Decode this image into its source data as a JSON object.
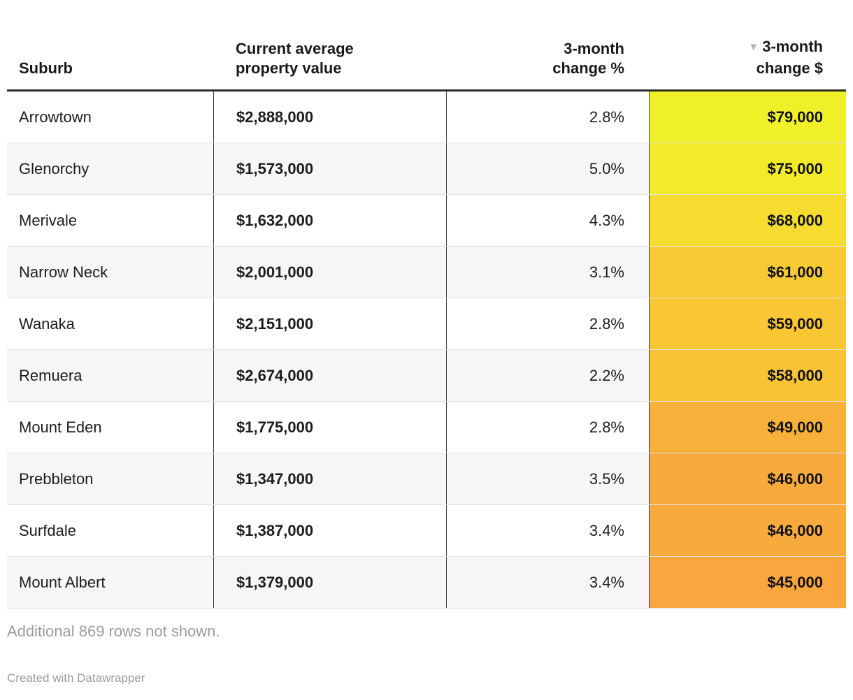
{
  "header": {
    "col1": "Suburb",
    "col2_line1": "Current average",
    "col2_line2": "property value",
    "col3_line1": "3-month",
    "col3_line2": "change %",
    "col4_line1": "3-month",
    "col4_line2": "change $",
    "sort_icon": "▼"
  },
  "table": {
    "rows": [
      {
        "suburb": "Arrowtown",
        "value": "$2,888,000",
        "pct": "2.8%",
        "dollar": "$79,000",
        "color": "#F0F028"
      },
      {
        "suburb": "Glenorchy",
        "value": "$1,573,000",
        "pct": "5.0%",
        "dollar": "$75,000",
        "color": "#F3EA29"
      },
      {
        "suburb": "Merivale",
        "value": "$1,632,000",
        "pct": "4.3%",
        "dollar": "$68,000",
        "color": "#F6DC2F"
      },
      {
        "suburb": "Narrow Neck",
        "value": "$2,001,000",
        "pct": "3.1%",
        "dollar": "$61,000",
        "color": "#F8CA33"
      },
      {
        "suburb": "Wanaka",
        "value": "$2,151,000",
        "pct": "2.8%",
        "dollar": "$59,000",
        "color": "#F8C733"
      },
      {
        "suburb": "Remuera",
        "value": "$2,674,000",
        "pct": "2.2%",
        "dollar": "$58,000",
        "color": "#F8C434"
      },
      {
        "suburb": "Mount Eden",
        "value": "$1,775,000",
        "pct": "2.8%",
        "dollar": "$49,000",
        "color": "#F7B13A"
      },
      {
        "suburb": "Prebbleton",
        "value": "$1,347,000",
        "pct": "3.5%",
        "dollar": "$46,000",
        "color": "#F8AB3C"
      },
      {
        "suburb": "Surfdale",
        "value": "$1,387,000",
        "pct": "3.4%",
        "dollar": "$46,000",
        "color": "#F8AB3C"
      },
      {
        "suburb": "Mount Albert",
        "value": "$1,379,000",
        "pct": "3.4%",
        "dollar": "$45,000",
        "color": "#F8A63D"
      }
    ]
  },
  "footer": {
    "note": "Additional 869 rows not shown.",
    "credit": "Created with Datawrapper"
  },
  "colors": {
    "header_border": "#2b2b2b",
    "row_divider": "#e2e2e2",
    "column_divider": "#3a3a3a",
    "zebra_stripe": "#f6f6f6",
    "muted_text": "#9c9c9c",
    "sort_arrow": "#b5b5b5"
  },
  "chart_data": {
    "type": "table",
    "title": "",
    "columns": [
      "Suburb",
      "Current average property value",
      "3-month change %",
      "3-month change $"
    ],
    "rows": [
      [
        "Arrowtown",
        2888000,
        2.8,
        79000
      ],
      [
        "Glenorchy",
        1573000,
        5.0,
        75000
      ],
      [
        "Merivale",
        1632000,
        4.3,
        68000
      ],
      [
        "Narrow Neck",
        2001000,
        3.1,
        61000
      ],
      [
        "Wanaka",
        2151000,
        2.8,
        59000
      ],
      [
        "Remuera",
        2674000,
        2.2,
        58000
      ],
      [
        "Mount Eden",
        1775000,
        2.8,
        49000
      ],
      [
        "Prebbleton",
        1347000,
        3.5,
        46000
      ],
      [
        "Surfdale",
        1387000,
        3.4,
        46000
      ],
      [
        "Mount Albert",
        1379000,
        3.4,
        45000
      ]
    ],
    "heatmap_column": "3-month change $",
    "heatmap_scale": [
      "#F0F028",
      "#F8A63D"
    ],
    "sort": {
      "column": "3-month change $",
      "direction": "desc"
    },
    "rows_not_shown": 869
  }
}
